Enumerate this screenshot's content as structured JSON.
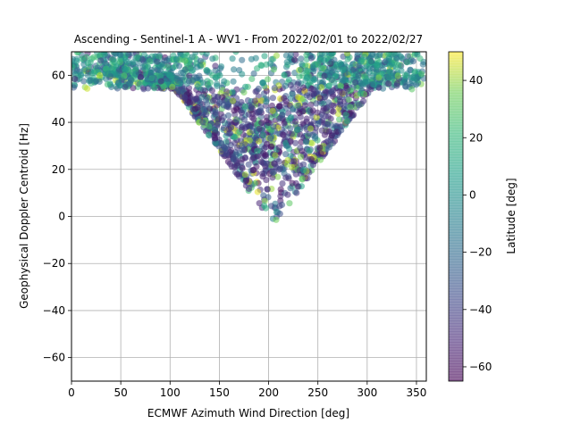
{
  "chart_data": {
    "type": "scatter",
    "title": "Ascending - Sentinel-1 A - WV1 - From 2022/02/01 to 2022/02/27",
    "xlabel": "ECMWF Azimuth Wind Direction [deg]",
    "ylabel": "Geophysical Doppler Centroid [Hz]",
    "xlim": [
      0,
      360
    ],
    "ylim": [
      -70,
      70
    ],
    "xticks": [
      "0",
      "50",
      "100",
      "150",
      "200",
      "250",
      "300",
      "350"
    ],
    "yticks": [
      "−60",
      "−40",
      "−20",
      "0",
      "20",
      "40",
      "60"
    ],
    "grid": true,
    "colorbar": {
      "label": "Latitude [deg]",
      "range": [
        -65,
        50
      ],
      "ticks": [
        "−60",
        "−40",
        "−20",
        "0",
        "20",
        "40"
      ],
      "colormap": "viridis",
      "alpha": 0.55
    },
    "point_color_variable": "Latitude [deg]",
    "point_cloud_approximate": {
      "count": 2200,
      "description": "V-shaped cloud: dense band near 55–70 Hz across 0–360 deg, dipping to ~0–30 Hz around 200 deg",
      "clusters": [
        {
          "x_center": 60,
          "y_center": 62,
          "count": 380
        },
        {
          "x_center": 300,
          "y_center": 62,
          "count": 380
        },
        {
          "x_center": 200,
          "y_center": 30,
          "count": 520
        },
        {
          "x_center": 130,
          "y_center": 45,
          "count": 420
        },
        {
          "x_center": 260,
          "y_center": 48,
          "count": 360
        },
        {
          "x_center": 205,
          "y_center": 8,
          "count": 60
        },
        {
          "x_center": 20,
          "y_center": 64,
          "count": 80
        }
      ]
    }
  }
}
